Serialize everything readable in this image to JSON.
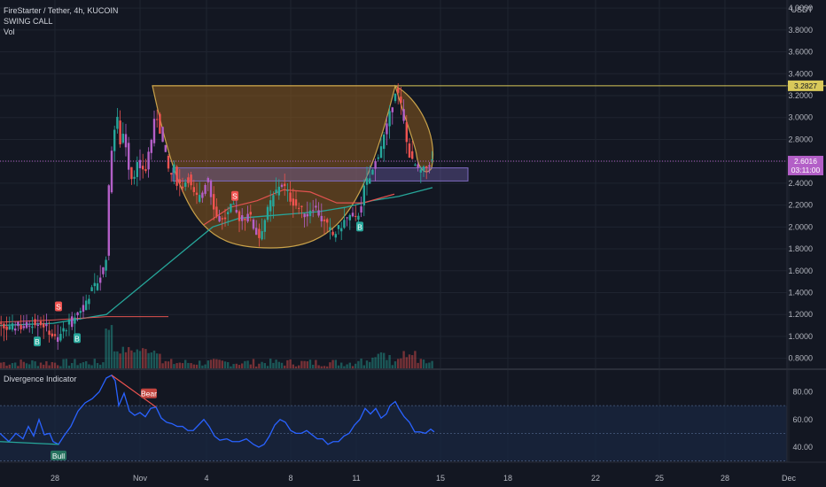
{
  "header": {
    "symbol_line": "FireStarter / Tether, 4h, KUCOIN",
    "indicator_1": "SWING CALL",
    "indicator_2": "Vol",
    "pane2_title": "Divergence Indicator",
    "currency": "USDT"
  },
  "tags": {
    "resistance": "3.2827",
    "last_price": "2.6016",
    "countdown": "03:11:00"
  },
  "signals": {
    "swing_buy": "B",
    "swing_sell": "S",
    "bull": "Bull",
    "bear": "Bear"
  },
  "colors": {
    "background": "#131722",
    "up": "#26a69a",
    "down": "#ef5350",
    "swing_bar": "#b35fc7",
    "ma_green": "#26a69a",
    "ma_red": "#e0524f",
    "cup_fill": "#8a5a1e",
    "cup_stroke": "#c9a24a",
    "resistance_line": "#d9c95a",
    "zone": "#7e6bbf",
    "rsi_line": "#2962ff",
    "bull_tag": "#26725f",
    "bear_tag": "#c2453f"
  },
  "chart_data": [
    {
      "type": "candlestick",
      "title": "FireStarter / Tether, 4h, KUCOIN",
      "ylim": [
        0.7,
        4.0
      ],
      "y_ticks": [
        "4.0000",
        "3.8000",
        "3.6000",
        "3.4000",
        "3.2000",
        "3.0000",
        "2.8000",
        "2.6000",
        "2.4000",
        "2.2000",
        "2.0000",
        "1.8000",
        "1.6000",
        "1.4000",
        "1.2000",
        "1.0000",
        "0.8000"
      ],
      "x_ticks": [
        "28",
        "Nov",
        "4",
        "8",
        "11",
        "15",
        "18",
        "22",
        "25",
        "28",
        "Dec"
      ],
      "price_path": [
        [
          0,
          1.1
        ],
        [
          12,
          1.06
        ],
        [
          20,
          1.1
        ],
        [
          28,
          1.08
        ],
        [
          36,
          1.12
        ],
        [
          44,
          1.14
        ],
        [
          52,
          1.1
        ],
        [
          60,
          1.02
        ],
        [
          66,
          0.96
        ],
        [
          72,
          1.04
        ],
        [
          80,
          1.12
        ],
        [
          88,
          1.2
        ],
        [
          96,
          1.28
        ],
        [
          104,
          1.4
        ],
        [
          112,
          1.5
        ],
        [
          118,
          1.6
        ],
        [
          122,
          1.75
        ],
        [
          126,
          2.6
        ],
        [
          130,
          2.85
        ],
        [
          134,
          3.0
        ],
        [
          138,
          2.75
        ],
        [
          142,
          2.9
        ],
        [
          146,
          2.6
        ],
        [
          150,
          2.45
        ],
        [
          154,
          2.5
        ],
        [
          158,
          2.6
        ],
        [
          162,
          2.55
        ],
        [
          166,
          2.5
        ],
        [
          170,
          2.7
        ],
        [
          174,
          2.85
        ],
        [
          178,
          3.05
        ],
        [
          182,
          2.9
        ],
        [
          186,
          2.75
        ],
        [
          190,
          2.6
        ],
        [
          194,
          2.45
        ],
        [
          198,
          2.55
        ],
        [
          202,
          2.4
        ],
        [
          208,
          2.38
        ],
        [
          214,
          2.45
        ],
        [
          220,
          2.3
        ],
        [
          226,
          2.25
        ],
        [
          232,
          2.35
        ],
        [
          236,
          2.5
        ],
        [
          240,
          2.3
        ],
        [
          246,
          2.1
        ],
        [
          252,
          2.05
        ],
        [
          258,
          2.1
        ],
        [
          264,
          2.2
        ],
        [
          270,
          2.1
        ],
        [
          276,
          2.05
        ],
        [
          282,
          2.15
        ],
        [
          288,
          2.0
        ],
        [
          294,
          1.9
        ],
        [
          300,
          2.05
        ],
        [
          306,
          2.2
        ],
        [
          312,
          2.3
        ],
        [
          318,
          2.4
        ],
        [
          324,
          2.35
        ],
        [
          330,
          2.25
        ],
        [
          336,
          2.2
        ],
        [
          342,
          2.15
        ],
        [
          348,
          2.1
        ],
        [
          354,
          2.2
        ],
        [
          360,
          2.15
        ],
        [
          366,
          2.05
        ],
        [
          372,
          2.0
        ],
        [
          378,
          1.92
        ],
        [
          384,
          1.98
        ],
        [
          390,
          2.05
        ],
        [
          396,
          2.1
        ],
        [
          402,
          2.05
        ],
        [
          408,
          2.15
        ],
        [
          414,
          2.4
        ],
        [
          420,
          2.45
        ],
        [
          426,
          2.6
        ],
        [
          432,
          2.75
        ],
        [
          438,
          2.9
        ],
        [
          444,
          3.1
        ],
        [
          448,
          3.25
        ],
        [
          452,
          3.2
        ],
        [
          456,
          3.05
        ],
        [
          460,
          2.8
        ],
        [
          466,
          2.6
        ],
        [
          472,
          2.55
        ],
        [
          478,
          2.5
        ],
        [
          484,
          2.55
        ],
        [
          488,
          2.6
        ]
      ],
      "swing_signals": [
        {
          "label": "B",
          "x": 42,
          "price": 0.95
        },
        {
          "label": "S",
          "x": 66,
          "price": 1.27
        },
        {
          "label": "B",
          "x": 87,
          "price": 0.98
        },
        {
          "label": "S",
          "x": 265,
          "price": 2.28
        },
        {
          "label": "B",
          "x": 406,
          "price": 2.0
        }
      ]
    },
    {
      "type": "line",
      "title": "Divergence Indicator",
      "ylim": [
        30,
        100
      ],
      "y_ticks": [
        "80.00",
        "60.00",
        "40.00"
      ],
      "bands": [
        50,
        70
      ],
      "values": [
        [
          0,
          50
        ],
        [
          10,
          44
        ],
        [
          18,
          50
        ],
        [
          26,
          46
        ],
        [
          32,
          55
        ],
        [
          38,
          48
        ],
        [
          44,
          60
        ],
        [
          50,
          49
        ],
        [
          56,
          50
        ],
        [
          60,
          44
        ],
        [
          66,
          42
        ],
        [
          72,
          48
        ],
        [
          80,
          55
        ],
        [
          88,
          66
        ],
        [
          96,
          72
        ],
        [
          104,
          75
        ],
        [
          112,
          80
        ],
        [
          120,
          90
        ],
        [
          126,
          92
        ],
        [
          130,
          88
        ],
        [
          134,
          70
        ],
        [
          140,
          79
        ],
        [
          146,
          66
        ],
        [
          152,
          63
        ],
        [
          158,
          65
        ],
        [
          164,
          62
        ],
        [
          170,
          68
        ],
        [
          176,
          69
        ],
        [
          182,
          61
        ],
        [
          188,
          58
        ],
        [
          194,
          57
        ],
        [
          200,
          55
        ],
        [
          206,
          55
        ],
        [
          212,
          52
        ],
        [
          218,
          52
        ],
        [
          224,
          56
        ],
        [
          230,
          60
        ],
        [
          236,
          55
        ],
        [
          242,
          48
        ],
        [
          248,
          45
        ],
        [
          256,
          46
        ],
        [
          262,
          44
        ],
        [
          270,
          44
        ],
        [
          278,
          46
        ],
        [
          286,
          42
        ],
        [
          292,
          40
        ],
        [
          298,
          42
        ],
        [
          304,
          48
        ],
        [
          310,
          56
        ],
        [
          316,
          60
        ],
        [
          322,
          58
        ],
        [
          328,
          52
        ],
        [
          334,
          50
        ],
        [
          340,
          50
        ],
        [
          346,
          52
        ],
        [
          352,
          49
        ],
        [
          358,
          46
        ],
        [
          364,
          46
        ],
        [
          370,
          42
        ],
        [
          376,
          44
        ],
        [
          382,
          44
        ],
        [
          388,
          48
        ],
        [
          394,
          50
        ],
        [
          400,
          56
        ],
        [
          406,
          60
        ],
        [
          412,
          68
        ],
        [
          418,
          64
        ],
        [
          424,
          68
        ],
        [
          430,
          61
        ],
        [
          436,
          64
        ],
        [
          440,
          70
        ],
        [
          446,
          73
        ],
        [
          450,
          68
        ],
        [
          456,
          62
        ],
        [
          462,
          58
        ],
        [
          468,
          51
        ],
        [
          474,
          51
        ],
        [
          480,
          50
        ],
        [
          486,
          53
        ],
        [
          490,
          51
        ]
      ],
      "divergences": [
        {
          "label": "Bull",
          "from": [
            0,
            44
          ],
          "to": [
            66,
            42
          ]
        },
        {
          "label": "Bear",
          "from": [
            126,
            92
          ],
          "to": [
            176,
            69
          ]
        }
      ]
    }
  ]
}
